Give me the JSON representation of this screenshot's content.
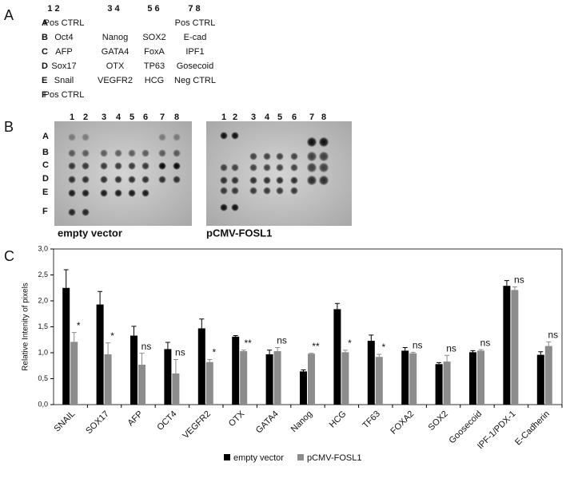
{
  "panel_labels": [
    "A",
    "B",
    "C"
  ],
  "table": {
    "header": [
      "1 2",
      "3 4",
      "5 6",
      "7 8"
    ],
    "rows": [
      [
        "A",
        "Pos CTRL",
        null,
        null,
        "Pos CTRL"
      ],
      [
        "B",
        "Oct4",
        "Nanog",
        "SOX2",
        "E-cad"
      ],
      [
        "C",
        "AFP",
        "GATA4",
        "FoxA",
        "IPF1"
      ],
      [
        "D",
        "Sox17",
        "OTX",
        "TP63",
        "Gosecoid"
      ],
      [
        "E",
        "Snail",
        "VEGFR2",
        "HCG",
        "Neg CTRL"
      ],
      [
        "F",
        "Pos CTRL",
        null,
        null,
        null
      ]
    ]
  },
  "blots": {
    "columns": [
      "1",
      "2",
      "3",
      "4",
      "5",
      "6",
      "7",
      "8"
    ],
    "rows": [
      "A",
      "B",
      "C",
      "D",
      "E",
      "F"
    ],
    "captions": [
      "empty vector",
      "pCMV-FOSL1"
    ]
  },
  "chart_data": {
    "type": "bar",
    "ylabel": "Relative Intenity of pixels",
    "categories": [
      "SNAIL",
      "SOX17",
      "AFP",
      "OCT4",
      "VEGFR2",
      "OTX",
      "GATA4",
      "Nanog",
      "HCG",
      "TF63",
      "FOXA2",
      "SOX2",
      "Goosecoid",
      "IPF-1/PDX-1",
      "E-Cadherin"
    ],
    "series": [
      {
        "name": "empty vector",
        "color": "#000000",
        "values": [
          2.25,
          1.93,
          1.33,
          1.07,
          1.47,
          1.31,
          0.97,
          0.64,
          1.84,
          1.23,
          1.04,
          0.78,
          1.01,
          2.29,
          0.96
        ],
        "errors": [
          0.35,
          0.25,
          0.18,
          0.13,
          0.18,
          0.02,
          0.08,
          0.03,
          0.11,
          0.11,
          0.06,
          0.03,
          0.03,
          0.1,
          0.06
        ]
      },
      {
        "name": "pCMV-FOSL1",
        "color": "#8c8c8c",
        "values": [
          1.21,
          0.97,
          0.77,
          0.6,
          0.82,
          1.03,
          1.03,
          0.98,
          1.01,
          0.92,
          0.99,
          0.83,
          1.04,
          2.21,
          1.13
        ],
        "errors": [
          0.18,
          0.22,
          0.22,
          0.27,
          0.05,
          0.02,
          0.07,
          0.01,
          0.04,
          0.05,
          0.02,
          0.12,
          0.02,
          0.06,
          0.08
        ]
      }
    ],
    "annotations": [
      "*",
      "*",
      "ns",
      "ns",
      "*",
      "**",
      "ns",
      "**",
      "*",
      "*",
      "ns",
      "ns",
      "ns",
      "ns",
      "ns"
    ],
    "ylim": [
      0,
      3
    ],
    "yticks": [
      {
        "value": 0,
        "label": "0,0"
      },
      {
        "value": 0.5,
        "label": "0,5"
      },
      {
        "value": 1,
        "label": "1,0"
      },
      {
        "value": 1.5,
        "label": "1,5"
      },
      {
        "value": 2,
        "label": "2,0"
      },
      {
        "value": 2.5,
        "label": "2,5"
      },
      {
        "value": 3,
        "label": "3,0"
      }
    ],
    "legend": "bottom"
  }
}
